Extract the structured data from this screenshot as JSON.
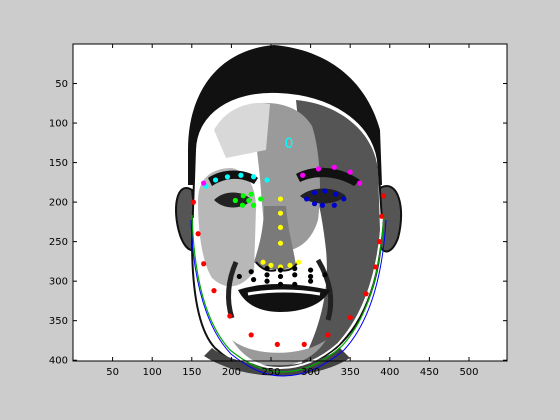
{
  "plot": {
    "x_ticks": [
      50,
      100,
      150,
      200,
      250,
      300,
      350,
      400,
      450,
      500
    ],
    "y_ticks": [
      50,
      100,
      150,
      200,
      250,
      300,
      350,
      400
    ],
    "x_range": [
      0,
      548
    ],
    "y_range": [
      0,
      401
    ],
    "face_index_label": "0",
    "colors": {
      "background": "#cccccc",
      "axes": "#ffffff",
      "brows": "#ff00ff",
      "brow_left": "#00ffff",
      "eye_left": "#00ff00",
      "eye_right": "#0000cc",
      "nose": "#ffff00",
      "mouth": "#000000",
      "jaw": "#ff0000",
      "contour_green": "#00aa00",
      "contour_blue": "#0000ff",
      "contour_white": "#ffffff",
      "index_label": "#00ffff"
    }
  }
}
